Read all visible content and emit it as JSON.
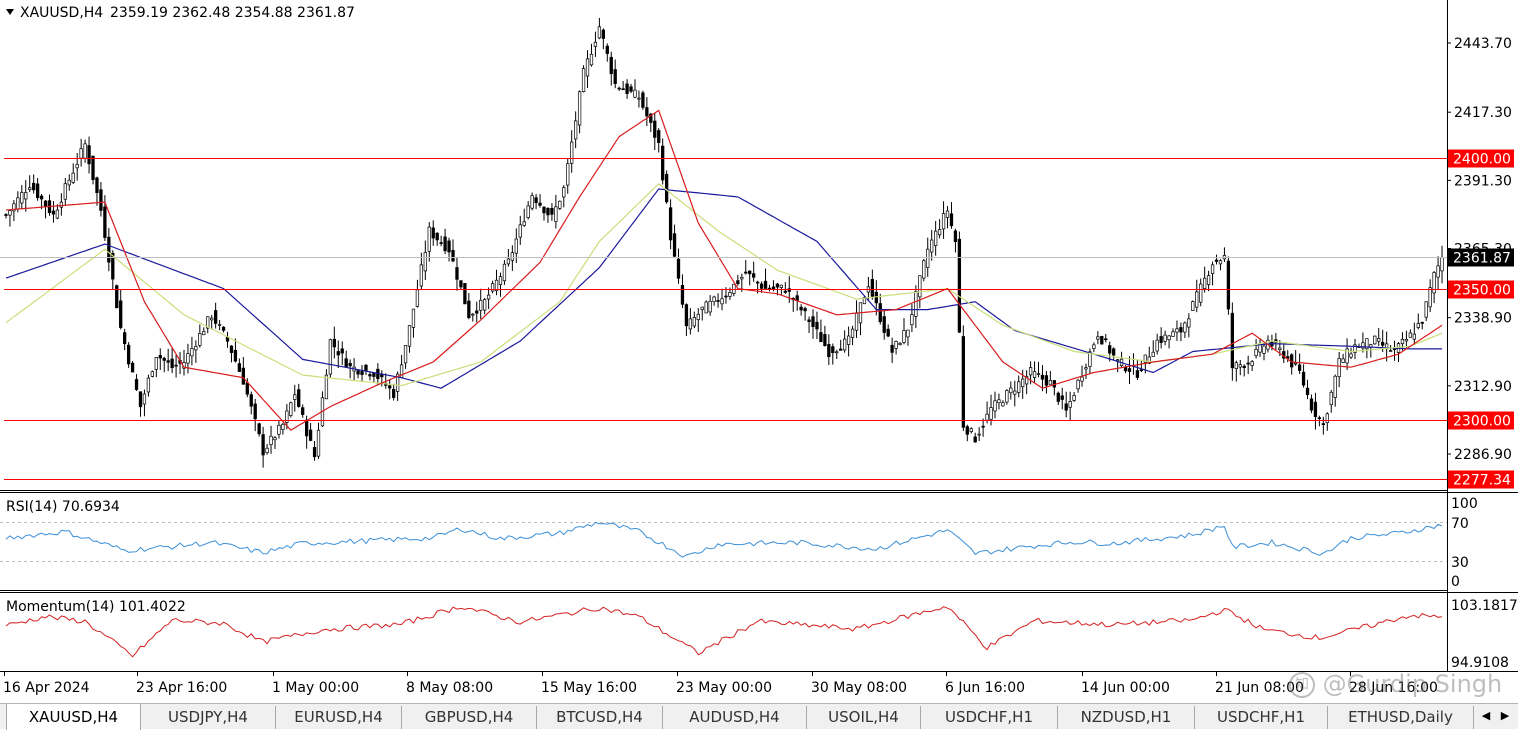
{
  "header": {
    "collapse_icon": "triangle-down-icon",
    "symbol": "XAUUSD,H4",
    "ohlc": "2359.19 2362.48 2354.88 2361.87"
  },
  "price_axis": {
    "ticks": [
      "2443.70",
      "2417.30",
      "2391.30",
      "2365.30",
      "2338.90",
      "2312.90",
      "2286.90"
    ],
    "levels": [
      {
        "price": 2400.0,
        "label": "2400.00"
      },
      {
        "price": 2350.0,
        "label": "2350.00"
      },
      {
        "price": 2300.0,
        "label": "2300.00"
      },
      {
        "price": 2277.34,
        "label": "2277.34"
      }
    ],
    "current": {
      "price": 2361.87,
      "label": "2361.87"
    }
  },
  "indicators": {
    "rsi": {
      "label": "RSI(14) 70.6934",
      "ticks": [
        "100",
        "70",
        "30",
        "0"
      ]
    },
    "momentum": {
      "label": "Momentum(14) 101.4022",
      "ticks": [
        "103.1817",
        "94.9108"
      ]
    }
  },
  "time_axis": {
    "labels": [
      "16 Apr 2024",
      "23 Apr 16:00",
      "1 May 00:00",
      "8 May 08:00",
      "15 May 16:00",
      "23 May 00:00",
      "30 May 08:00",
      "6 Jun 16:00",
      "14 Jun 00:00",
      "21 Jun 08:00",
      "28 Jun 16:00"
    ]
  },
  "tabs": [
    {
      "label": "XAUUSD,H4",
      "active": true
    },
    {
      "label": "USDJPY,H4"
    },
    {
      "label": "EURUSD,H4"
    },
    {
      "label": "GBPUSD,H4"
    },
    {
      "label": "BTCUSD,H4"
    },
    {
      "label": "AUDUSD,H4"
    },
    {
      "label": "USOIL,H4"
    },
    {
      "label": "USDCHF,H1"
    },
    {
      "label": "NZDUSD,H1"
    },
    {
      "label": "USDCHF,H1"
    },
    {
      "label": "ETHUSD,Daily"
    }
  ],
  "tab_nav": {
    "prev_icon": "arrow-left-icon",
    "next_icon": "arrow-right-icon"
  },
  "watermark": {
    "icon": "zhihu-logo-icon",
    "text": "@Gurdip Singh"
  },
  "colors": {
    "level_line": "#ff0000",
    "ma_fast": "#d91c1c",
    "ma_mid": "#c9df7a",
    "ma_slow": "#1a1a9c",
    "rsi": "#3a8fd8",
    "momentum": "#d42020",
    "current_price_box": "#000000"
  },
  "chart_data": {
    "type": "candlestick",
    "price_keypoints": [
      [
        0,
        2378
      ],
      [
        6,
        2390
      ],
      [
        12,
        2378
      ],
      [
        17,
        2395
      ],
      [
        20,
        2405
      ],
      [
        24,
        2380
      ],
      [
        29,
        2335
      ],
      [
        34,
        2305
      ],
      [
        38,
        2325
      ],
      [
        42,
        2320
      ],
      [
        45,
        2322
      ],
      [
        52,
        2340
      ],
      [
        56,
        2330
      ],
      [
        60,
        2315
      ],
      [
        65,
        2288
      ],
      [
        70,
        2298
      ],
      [
        73,
        2310
      ],
      [
        78,
        2286
      ],
      [
        82,
        2330
      ],
      [
        87,
        2320
      ],
      [
        93,
        2318
      ],
      [
        98,
        2310
      ],
      [
        102,
        2335
      ],
      [
        107,
        2372
      ],
      [
        112,
        2365
      ],
      [
        117,
        2340
      ],
      [
        121,
        2345
      ],
      [
        127,
        2360
      ],
      [
        133,
        2386
      ],
      [
        138,
        2377
      ],
      [
        141,
        2388
      ],
      [
        146,
        2432
      ],
      [
        150,
        2450
      ],
      [
        154,
        2428
      ],
      [
        160,
        2423
      ],
      [
        165,
        2405
      ],
      [
        168,
        2370
      ],
      [
        172,
        2335
      ],
      [
        176,
        2342
      ],
      [
        182,
        2348
      ],
      [
        187,
        2356
      ],
      [
        192,
        2350
      ],
      [
        197,
        2350
      ],
      [
        203,
        2338
      ],
      [
        208,
        2326
      ],
      [
        213,
        2330
      ],
      [
        218,
        2352
      ],
      [
        224,
        2326
      ],
      [
        228,
        2335
      ],
      [
        233,
        2365
      ],
      [
        238,
        2380
      ],
      [
        240,
        2368
      ],
      [
        242,
        2298
      ],
      [
        245,
        2293
      ],
      [
        249,
        2304
      ],
      [
        254,
        2311
      ],
      [
        259,
        2318
      ],
      [
        264,
        2314
      ],
      [
        268,
        2303
      ],
      [
        272,
        2318
      ],
      [
        276,
        2333
      ],
      [
        281,
        2322
      ],
      [
        286,
        2318
      ],
      [
        291,
        2330
      ],
      [
        297,
        2334
      ],
      [
        302,
        2350
      ],
      [
        305,
        2360
      ],
      [
        308,
        2362
      ],
      [
        310,
        2320
      ],
      [
        314,
        2322
      ],
      [
        319,
        2330
      ],
      [
        323,
        2325
      ],
      [
        327,
        2318
      ],
      [
        330,
        2305
      ],
      [
        333,
        2298
      ],
      [
        337,
        2322
      ],
      [
        341,
        2328
      ],
      [
        346,
        2330
      ],
      [
        351,
        2326
      ],
      [
        355,
        2332
      ],
      [
        358,
        2338
      ],
      [
        361,
        2355
      ],
      [
        363,
        2361.87
      ]
    ],
    "ma_fast_keypoints": [
      [
        0,
        2380
      ],
      [
        25,
        2383
      ],
      [
        35,
        2345
      ],
      [
        45,
        2320
      ],
      [
        60,
        2316
      ],
      [
        72,
        2296
      ],
      [
        82,
        2305
      ],
      [
        95,
        2314
      ],
      [
        108,
        2322
      ],
      [
        120,
        2338
      ],
      [
        135,
        2360
      ],
      [
        145,
        2385
      ],
      [
        155,
        2408
      ],
      [
        165,
        2418
      ],
      [
        175,
        2375
      ],
      [
        185,
        2350
      ],
      [
        195,
        2348
      ],
      [
        210,
        2340
      ],
      [
        225,
        2342
      ],
      [
        238,
        2350
      ],
      [
        252,
        2322
      ],
      [
        262,
        2312
      ],
      [
        275,
        2318
      ],
      [
        290,
        2322
      ],
      [
        305,
        2325
      ],
      [
        315,
        2333
      ],
      [
        325,
        2322
      ],
      [
        340,
        2320
      ],
      [
        352,
        2325
      ],
      [
        363,
        2336
      ]
    ],
    "ma_mid_keypoints": [
      [
        0,
        2337
      ],
      [
        25,
        2365
      ],
      [
        45,
        2340
      ],
      [
        75,
        2317
      ],
      [
        100,
        2313
      ],
      [
        120,
        2322
      ],
      [
        140,
        2345
      ],
      [
        150,
        2368
      ],
      [
        165,
        2390
      ],
      [
        180,
        2372
      ],
      [
        195,
        2357
      ],
      [
        215,
        2346
      ],
      [
        238,
        2350
      ],
      [
        252,
        2336
      ],
      [
        270,
        2326
      ],
      [
        290,
        2322
      ],
      [
        305,
        2325
      ],
      [
        320,
        2330
      ],
      [
        340,
        2326
      ],
      [
        355,
        2328
      ],
      [
        363,
        2333
      ]
    ],
    "ma_slow_keypoints": [
      [
        0,
        2354
      ],
      [
        25,
        2367
      ],
      [
        55,
        2350
      ],
      [
        75,
        2323
      ],
      [
        100,
        2316
      ],
      [
        110,
        2312
      ],
      [
        130,
        2330
      ],
      [
        150,
        2358
      ],
      [
        165,
        2388
      ],
      [
        185,
        2385
      ],
      [
        205,
        2368
      ],
      [
        220,
        2342
      ],
      [
        233,
        2342
      ],
      [
        245,
        2345
      ],
      [
        255,
        2334
      ],
      [
        275,
        2325
      ],
      [
        290,
        2318
      ],
      [
        300,
        2326
      ],
      [
        320,
        2329
      ],
      [
        340,
        2328
      ],
      [
        355,
        2327
      ],
      [
        363,
        2327
      ]
    ],
    "rsi_keypoints": [
      [
        0,
        54
      ],
      [
        15,
        62
      ],
      [
        30,
        38
      ],
      [
        40,
        42
      ],
      [
        52,
        48
      ],
      [
        65,
        35
      ],
      [
        75,
        47
      ],
      [
        90,
        50
      ],
      [
        108,
        54
      ],
      [
        115,
        66
      ],
      [
        125,
        53
      ],
      [
        140,
        60
      ],
      [
        150,
        74
      ],
      [
        160,
        62
      ],
      [
        172,
        30
      ],
      [
        180,
        46
      ],
      [
        200,
        48
      ],
      [
        220,
        40
      ],
      [
        238,
        64
      ],
      [
        245,
        34
      ],
      [
        260,
        44
      ],
      [
        270,
        49
      ],
      [
        280,
        47
      ],
      [
        300,
        58
      ],
      [
        308,
        70
      ],
      [
        310,
        42
      ],
      [
        320,
        48
      ],
      [
        333,
        34
      ],
      [
        340,
        54
      ],
      [
        352,
        60
      ],
      [
        363,
        70.69
      ]
    ],
    "momentum_keypoints": [
      [
        0,
        100.2
      ],
      [
        10,
        101.5
      ],
      [
        20,
        100.8
      ],
      [
        32,
        95.8
      ],
      [
        42,
        101.0
      ],
      [
        55,
        100.5
      ],
      [
        65,
        97.8
      ],
      [
        80,
        99.6
      ],
      [
        100,
        100.4
      ],
      [
        115,
        103.0
      ],
      [
        130,
        100.7
      ],
      [
        150,
        102.8
      ],
      [
        160,
        101.5
      ],
      [
        175,
        96.2
      ],
      [
        190,
        100.8
      ],
      [
        215,
        99.7
      ],
      [
        238,
        103.0
      ],
      [
        248,
        97.0
      ],
      [
        260,
        100.9
      ],
      [
        280,
        100.3
      ],
      [
        300,
        101.0
      ],
      [
        308,
        102.5
      ],
      [
        318,
        99.6
      ],
      [
        332,
        98.4
      ],
      [
        345,
        100.2
      ],
      [
        355,
        101.7
      ],
      [
        363,
        101.4
      ]
    ],
    "visible_bars": 364
  }
}
